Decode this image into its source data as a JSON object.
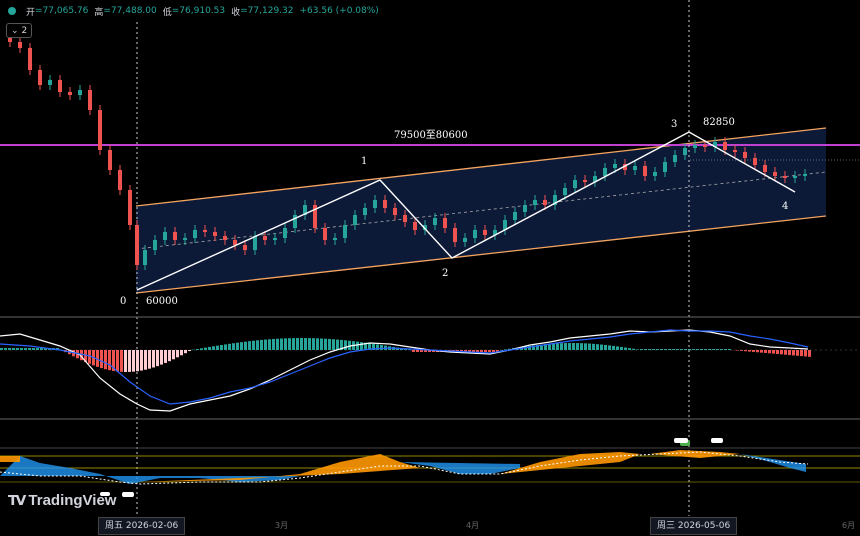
{
  "header": {
    "open_label": "开",
    "open_value": "=77,065.76",
    "high_label": "高",
    "high_value": "=77,488.00",
    "low_label": "低",
    "low_value": "=76,910.53",
    "close_label": "收",
    "close_value": "=77,129.32",
    "change": "+63.56 (+0.08%)",
    "indicator_count": "2"
  },
  "colors": {
    "up": "#26a69a",
    "down": "#ef5350",
    "channel_fill": "#0d1a3a",
    "channel_edge": "#f4a460",
    "resistance": "#c040d0",
    "macd_line": "#ffffff",
    "signal_line": "#2962ff"
  },
  "annotations": {
    "wave_0": "0",
    "wave_1": "1",
    "wave_2": "2",
    "wave_3": "3",
    "wave_4": "4",
    "low_price": "60000",
    "high_price": "82850",
    "zone": "79500至80600"
  },
  "time_axis": {
    "left_date": "周五 2026-02-06",
    "right_date": "周三 2026-05-06",
    "tick_1": "3月",
    "tick_2": "4月",
    "tick_3": "6月"
  },
  "brand": "TradingView"
}
